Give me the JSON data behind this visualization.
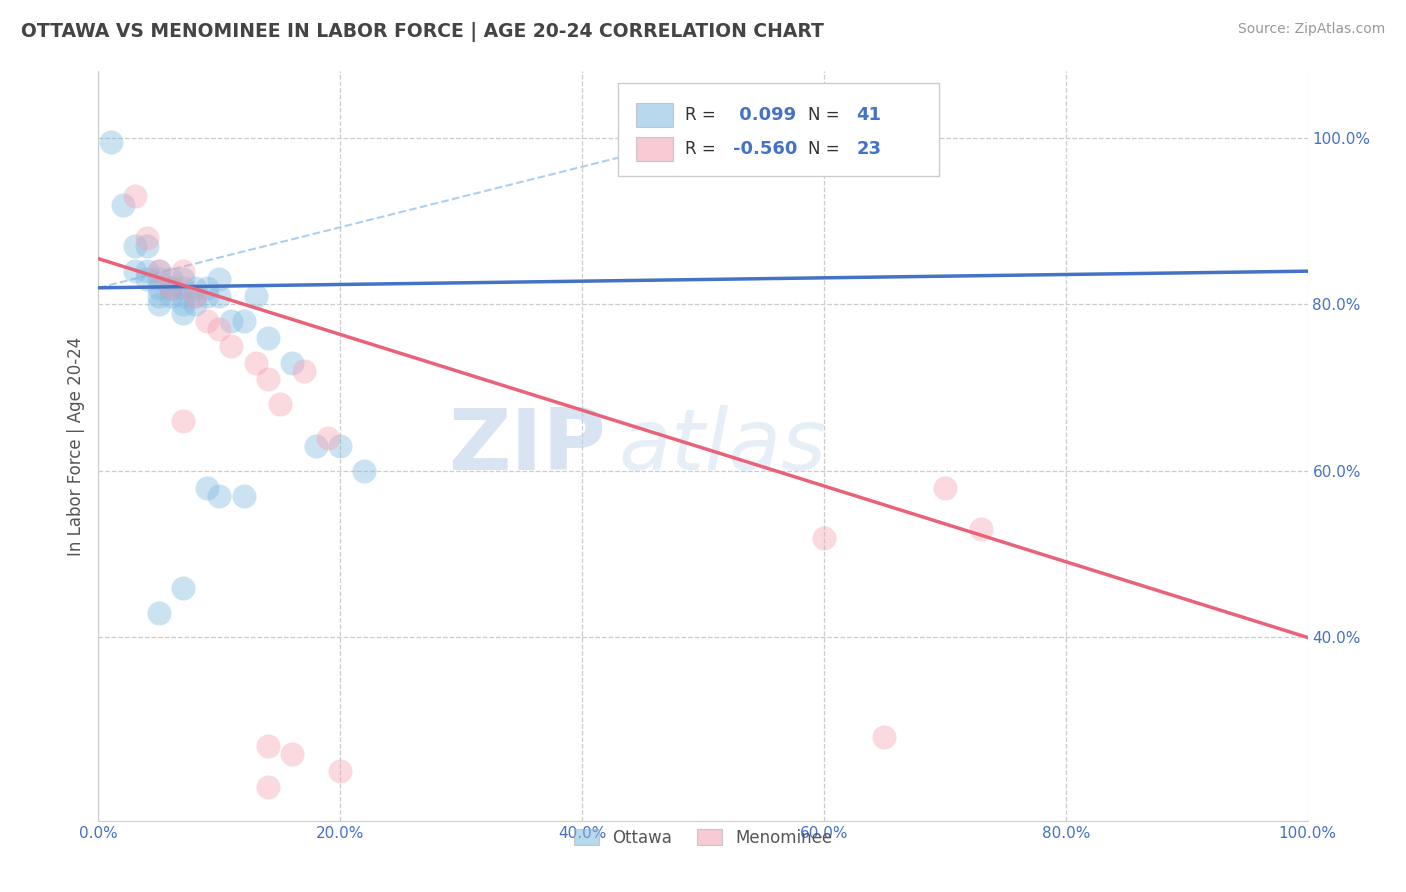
{
  "title": "OTTAWA VS MENOMINEE IN LABOR FORCE | AGE 20-24 CORRELATION CHART",
  "source": "Source: ZipAtlas.com",
  "ylabel": "In Labor Force | Age 20-24",
  "xlim": [
    0.0,
    1.0
  ],
  "ylim": [
    0.18,
    1.08
  ],
  "xticks": [
    0.0,
    0.2,
    0.4,
    0.6,
    0.8,
    1.0
  ],
  "yticks_right": [
    0.4,
    0.6,
    0.8,
    1.0
  ],
  "xticklabels": [
    "0.0%",
    "20.0%",
    "40.0%",
    "60.0%",
    "80.0%",
    "100.0%"
  ],
  "yticklabels_right": [
    "40.0%",
    "60.0%",
    "80.0%",
    "100.0%"
  ],
  "ottawa_R": 0.099,
  "ottawa_N": 41,
  "menominee_R": -0.56,
  "menominee_N": 23,
  "ottawa_color": "#7fb8e0",
  "menominee_color": "#f4a0b0",
  "ottawa_line_color": "#4472c4",
  "menominee_line_color": "#e8637a",
  "dashed_line_color": "#9ec8e8",
  "ottawa_scatter_x": [
    0.01,
    0.02,
    0.03,
    0.03,
    0.04,
    0.04,
    0.04,
    0.05,
    0.05,
    0.05,
    0.05,
    0.05,
    0.06,
    0.06,
    0.06,
    0.06,
    0.07,
    0.07,
    0.07,
    0.07,
    0.07,
    0.08,
    0.08,
    0.08,
    0.09,
    0.09,
    0.1,
    0.1,
    0.11,
    0.12,
    0.13,
    0.14,
    0.16,
    0.18,
    0.2,
    0.22,
    0.09,
    0.1,
    0.12,
    0.07,
    0.05
  ],
  "ottawa_scatter_y": [
    0.995,
    0.92,
    0.87,
    0.84,
    0.87,
    0.84,
    0.83,
    0.84,
    0.83,
    0.82,
    0.81,
    0.8,
    0.83,
    0.82,
    0.82,
    0.81,
    0.83,
    0.82,
    0.81,
    0.8,
    0.79,
    0.82,
    0.81,
    0.8,
    0.82,
    0.81,
    0.83,
    0.81,
    0.78,
    0.78,
    0.81,
    0.76,
    0.73,
    0.63,
    0.63,
    0.6,
    0.58,
    0.57,
    0.57,
    0.46,
    0.43
  ],
  "menominee_scatter_x": [
    0.03,
    0.04,
    0.05,
    0.06,
    0.07,
    0.08,
    0.09,
    0.1,
    0.11,
    0.13,
    0.14,
    0.15,
    0.07,
    0.19,
    0.7,
    0.73,
    0.6,
    0.65,
    0.14,
    0.16,
    0.2,
    0.14,
    0.17
  ],
  "menominee_scatter_y": [
    0.93,
    0.88,
    0.84,
    0.82,
    0.84,
    0.81,
    0.78,
    0.77,
    0.75,
    0.73,
    0.71,
    0.68,
    0.66,
    0.64,
    0.58,
    0.53,
    0.52,
    0.28,
    0.27,
    0.26,
    0.24,
    0.22,
    0.72
  ],
  "ottawa_trendline": [
    0.0,
    1.0,
    0.82,
    0.84
  ],
  "menominee_trendline": [
    0.0,
    1.0,
    0.855,
    0.4
  ],
  "dashed_line": [
    0.0,
    0.55,
    0.82,
    1.02
  ],
  "background_color": "#ffffff",
  "grid_color": "#cccccc",
  "watermark_zip": "ZIP",
  "watermark_atlas": "atlas",
  "title_color": "#444444",
  "axis_label_color": "#555555",
  "tick_color": "#4472c4"
}
